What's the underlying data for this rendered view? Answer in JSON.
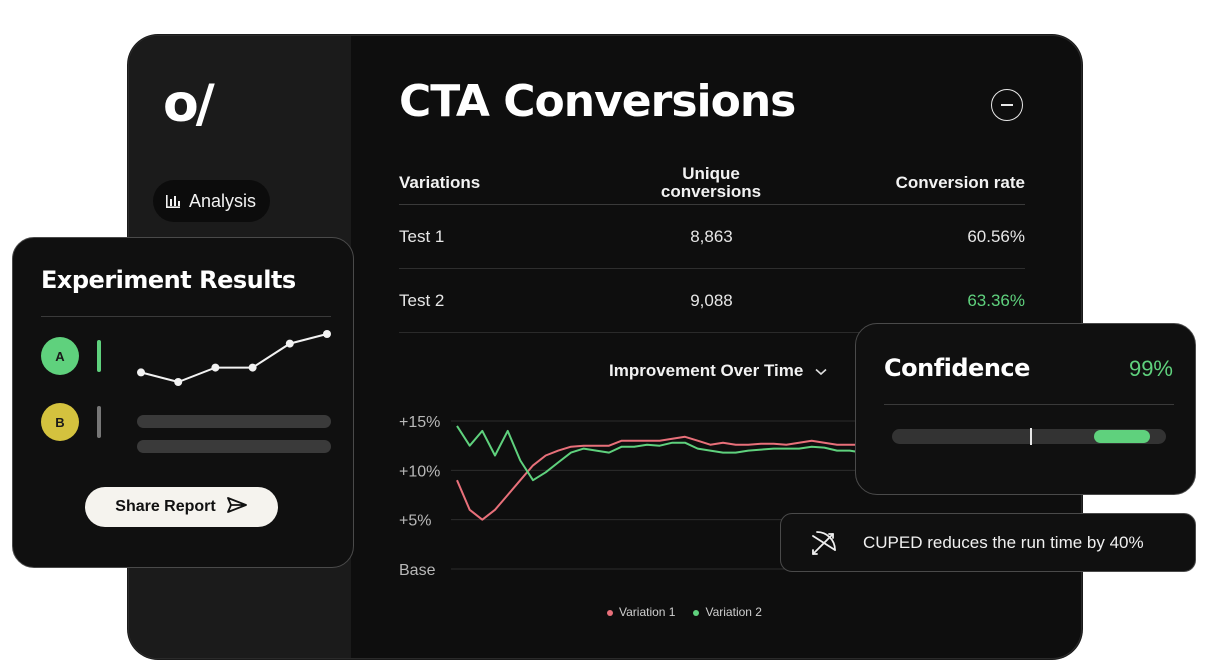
{
  "app": {
    "logo_text": "o/",
    "nav": {
      "analysis_label": "Analysis"
    }
  },
  "main": {
    "title": "CTA Conversions",
    "table": {
      "headers": [
        "Variations",
        "Unique conversions",
        "Conversion rate"
      ],
      "rows": [
        {
          "variation": "Test 1",
          "conversions": "8,863",
          "rate": "60.56%"
        },
        {
          "variation": "Test 2",
          "conversions": "9,088",
          "rate": "63.36%"
        }
      ]
    }
  },
  "chart_data": {
    "type": "line",
    "title": "Improvement Over Time",
    "y_ticks": [
      "+15%",
      "+10%",
      "+5%",
      "Base"
    ],
    "ylim": [
      0,
      15
    ],
    "grid": true,
    "legend_position": "bottom",
    "series": [
      {
        "name": "Variation 1",
        "color": "#e8707a",
        "values": [
          9.0,
          6.0,
          5.0,
          6.0,
          7.5,
          9.0,
          10.5,
          11.5,
          12.0,
          12.4,
          12.5,
          12.5,
          12.5,
          13.0,
          13.0,
          13.0,
          13.0,
          13.2,
          13.4,
          13.0,
          12.6,
          12.8,
          12.6,
          12.6,
          12.7,
          12.7,
          12.6,
          12.8,
          13.0,
          12.8,
          12.6,
          12.6,
          12.6,
          12.5,
          12.4,
          12.2,
          12.2,
          12.1,
          12.0,
          12.0,
          12.0,
          12.0,
          12.6
        ]
      },
      {
        "name": "Variation 2",
        "color": "#5fd17d",
        "values": [
          14.5,
          12.5,
          14.0,
          11.5,
          14.0,
          11.0,
          9.0,
          9.8,
          10.8,
          11.8,
          12.2,
          12.0,
          11.8,
          12.4,
          12.4,
          12.6,
          12.5,
          12.8,
          12.8,
          12.2,
          12.0,
          11.8,
          11.8,
          12.0,
          12.1,
          12.2,
          12.2,
          12.2,
          12.4,
          12.3,
          12.0,
          12.0,
          11.8,
          11.6,
          11.5,
          11.6,
          11.6,
          11.6,
          11.6,
          11.6,
          11.4,
          11.4,
          11.8
        ]
      }
    ]
  },
  "experiment_card": {
    "title": "Experiment Results",
    "variant_a": "A",
    "variant_b": "B",
    "variant_a_trend": [
      3,
      1,
      4,
      4,
      9,
      11
    ],
    "share_label": "Share Report"
  },
  "confidence_card": {
    "title": "Confidence",
    "value": "99%",
    "level": 0.99
  },
  "banner": {
    "text": "CUPED reduces the run time by 40%"
  },
  "colors": {
    "accent_green": "#5fd17d",
    "accent_red": "#e8707a",
    "variant_b_yellow": "#d4c23e",
    "panel_bg": "#0e0e0e"
  },
  "icons": [
    "bar-chart-icon",
    "minus-icon",
    "chevron-down-icon",
    "send-icon",
    "archery-icon"
  ]
}
